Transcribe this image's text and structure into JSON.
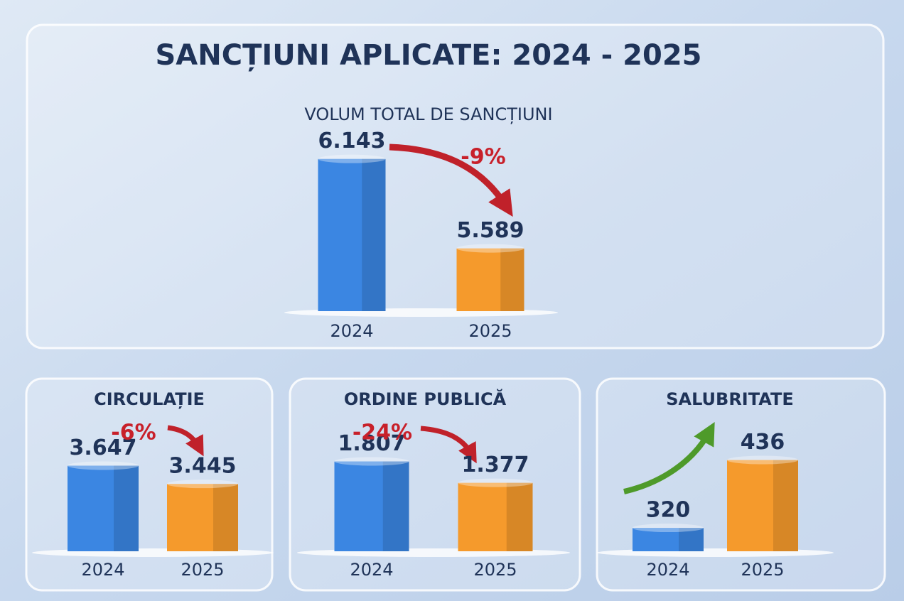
{
  "title": "SANCȚIUNI APLICATE: 2024 - 2025",
  "chart_data": [
    {
      "type": "bar",
      "title": "VOLUM TOTAL DE SANCȚIUNI",
      "categories": [
        "2024",
        "2025"
      ],
      "values": [
        6143,
        5589
      ],
      "value_labels": [
        "6.143",
        "5.589"
      ],
      "colors": [
        "#3b86e2",
        "#f59a2c"
      ],
      "ylim": [
        5200,
        6300
      ],
      "annotation": "-9%"
    },
    {
      "type": "bar",
      "title": "CIRCULAȚIE",
      "categories": [
        "2024",
        "2025"
      ],
      "values": [
        3647,
        3445
      ],
      "value_labels": [
        "3.647",
        "3.445"
      ],
      "colors": [
        "#3b86e2",
        "#f59a2c"
      ],
      "ylim": [
        2700,
        3800
      ],
      "annotation": "-6%"
    },
    {
      "type": "bar",
      "title": "ORDINE PUBLICĂ",
      "categories": [
        "2024",
        "2025"
      ],
      "values": [
        1807,
        1377
      ],
      "value_labels": [
        "1.807",
        "1.377"
      ],
      "colors": [
        "#3b86e2",
        "#f59a2c"
      ],
      "ylim": [
        0,
        2000
      ],
      "annotation": "-24%"
    },
    {
      "type": "bar",
      "title": "SALUBRITATE",
      "categories": [
        "2024",
        "2025"
      ],
      "values": [
        320,
        436
      ],
      "colors": [
        "#3b86e2",
        "#f59a2c"
      ],
      "ylim": [
        280,
        450
      ]
    }
  ]
}
